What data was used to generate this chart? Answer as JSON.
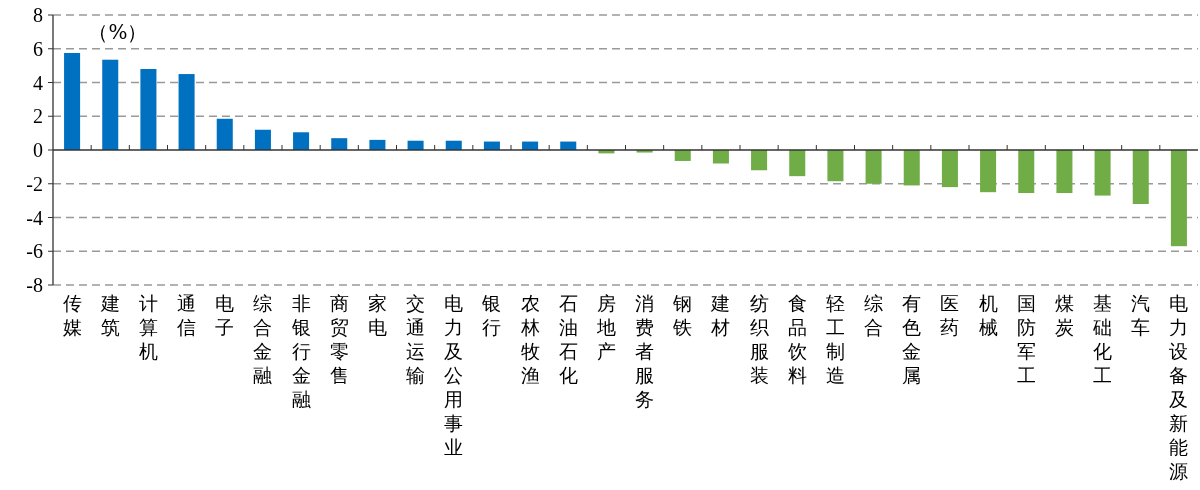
{
  "chart_data": {
    "type": "bar",
    "categories": [
      "传媒",
      "建筑",
      "计算机",
      "通信",
      "电子",
      "综合金融",
      "非银行金融",
      "商贸零售",
      "家电",
      "交通运输",
      "电力及公用事业",
      "银行",
      "农林牧渔",
      "石油石化",
      "房地产",
      "消费者服务",
      "钢铁",
      "建材",
      "纺织服装",
      "食品饮料",
      "轻工制造",
      "综合",
      "有色金属",
      "医药",
      "机械",
      "国防军工",
      "煤炭",
      "基础化工",
      "汽车",
      "电力设备及新能源"
    ],
    "values": [
      5.75,
      5.35,
      4.8,
      4.5,
      1.85,
      1.2,
      1.05,
      0.7,
      0.6,
      0.55,
      0.55,
      0.5,
      0.5,
      0.5,
      -0.2,
      -0.15,
      -0.65,
      -0.8,
      -1.2,
      -1.55,
      -1.85,
      -2.0,
      -2.1,
      -2.2,
      -2.5,
      -2.55,
      -2.55,
      -2.7,
      -3.2,
      -5.7
    ],
    "colors": [
      "#0070c0",
      "#0070c0",
      "#0070c0",
      "#0070c0",
      "#0070c0",
      "#0070c0",
      "#0070c0",
      "#0070c0",
      "#0070c0",
      "#0070c0",
      "#0070c0",
      "#0070c0",
      "#0070c0",
      "#0070c0",
      "#70ad47",
      "#70ad47",
      "#70ad47",
      "#70ad47",
      "#70ad47",
      "#70ad47",
      "#70ad47",
      "#70ad47",
      "#70ad47",
      "#70ad47",
      "#70ad47",
      "#70ad47",
      "#70ad47",
      "#70ad47",
      "#70ad47",
      "#70ad47"
    ],
    "ylim": [
      -8,
      8
    ],
    "yticks": [
      -8,
      -6,
      -4,
      -2,
      0,
      2,
      4,
      6,
      8
    ],
    "grid": "y",
    "annotations": [
      "（%）"
    ]
  }
}
